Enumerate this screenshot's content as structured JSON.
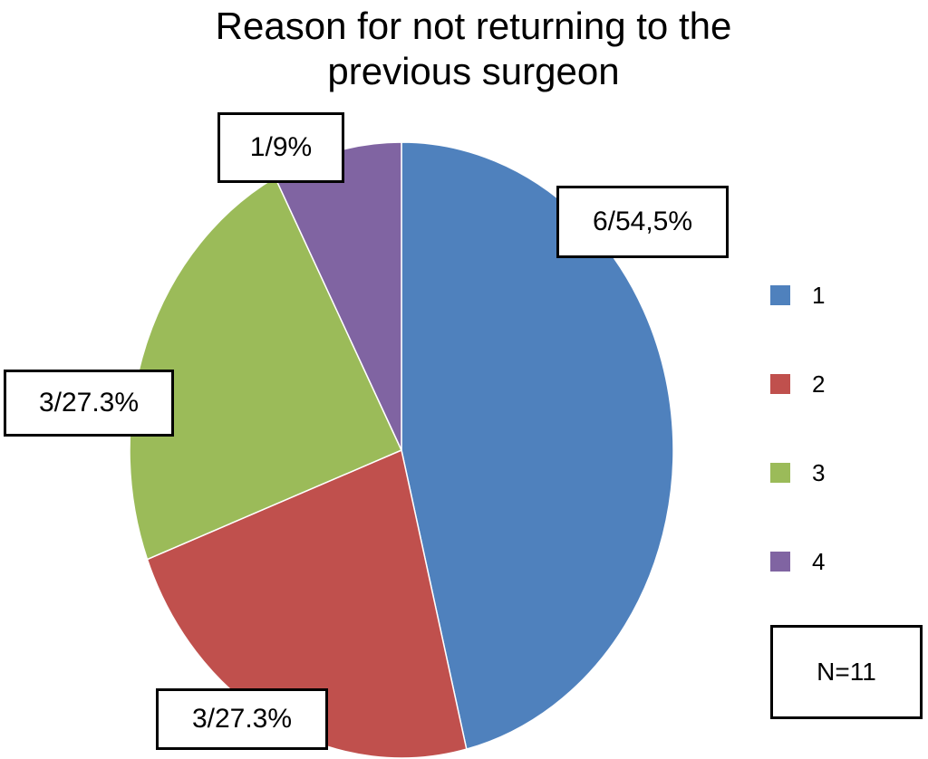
{
  "chart_data": {
    "type": "pie",
    "title_lines": [
      "Reason for not returning to the",
      "previous surgeon"
    ],
    "categories": [
      "1",
      "2",
      "3",
      "4"
    ],
    "values": [
      6,
      3,
      3,
      1
    ],
    "labels": [
      "6/54,5%",
      "3/27.3%",
      "3/27.3%",
      "1/9%"
    ],
    "colors": [
      "#4F81BD",
      "#C0504D",
      "#9BBB59",
      "#8064A2"
    ],
    "legend_position": "right",
    "annotation": "N=11"
  }
}
